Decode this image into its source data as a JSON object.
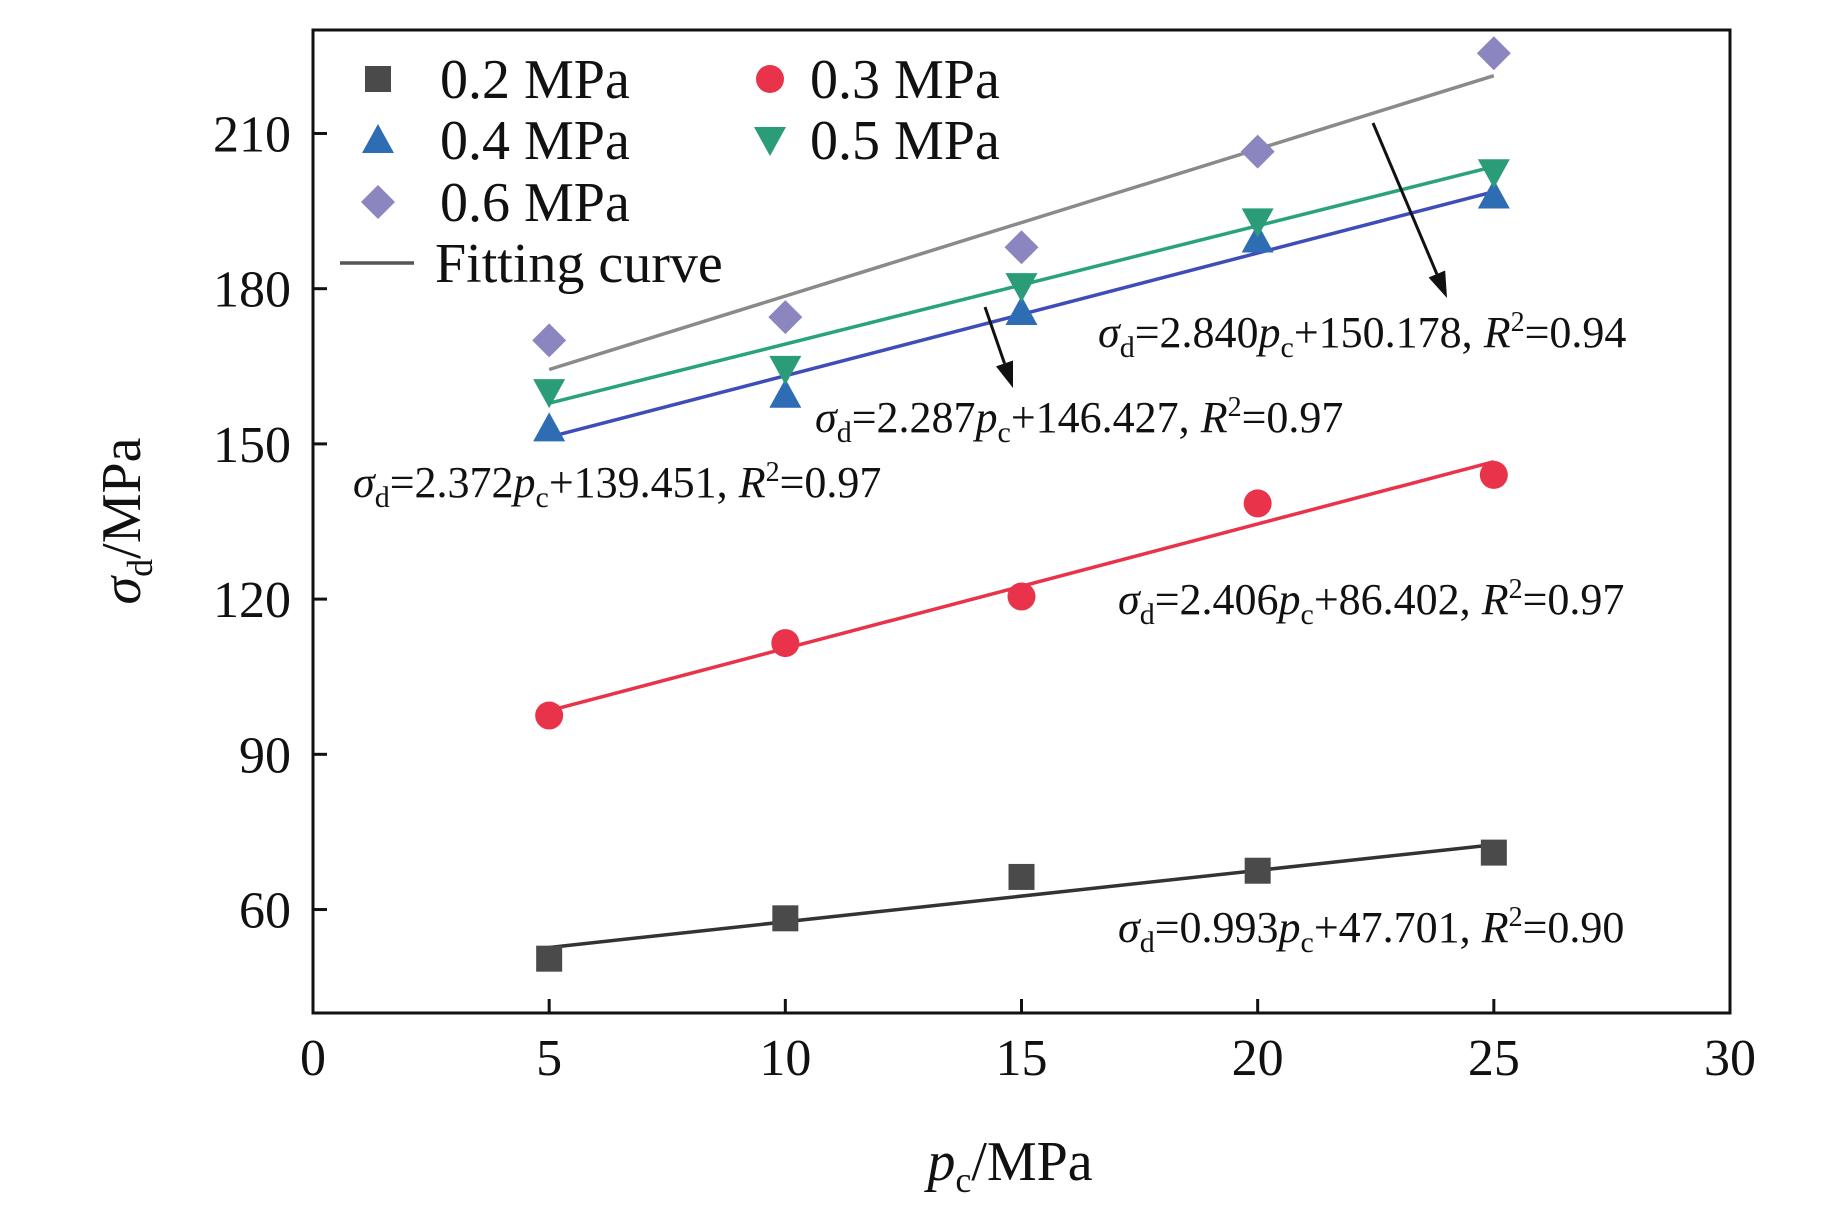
{
  "chart_data": {
    "type": "scatter",
    "title": "",
    "xlabel": {
      "symbol": "p",
      "subscript": "c",
      "unit": "/MPa"
    },
    "ylabel": {
      "symbol": "σ",
      "subscript": "d",
      "unit": "/MPa"
    },
    "xlim": [
      0,
      30
    ],
    "ylim": [
      40,
      230
    ],
    "xticks": [
      0,
      5,
      10,
      15,
      20,
      25,
      30
    ],
    "yticks": [
      60,
      90,
      120,
      150,
      180,
      210
    ],
    "grid": false,
    "legend_position": "top-left",
    "fit_label": "Fitting curve",
    "fit_color": "#555555",
    "series": [
      {
        "name": "0.2 MPa",
        "marker": "square",
        "color": "#4a4a4a",
        "line_color": "#333333",
        "x": [
          5,
          10,
          15,
          20,
          25
        ],
        "y": [
          50.5,
          58.3,
          66.3,
          67.5,
          71.0
        ],
        "fit": {
          "slope": 0.993,
          "intercept": 47.701
        },
        "equation": {
          "slope": "0.993",
          "intercept": "47.701",
          "r2": "0.90"
        }
      },
      {
        "name": "0.3 MPa",
        "marker": "circle",
        "color": "#e8334a",
        "line_color": "#e8334a",
        "x": [
          5,
          10,
          15,
          20,
          25
        ],
        "y": [
          97.5,
          111.5,
          120.5,
          138.5,
          144.0
        ],
        "fit": {
          "slope": 2.406,
          "intercept": 86.402
        },
        "equation": {
          "slope": "2.406",
          "intercept": "86.402",
          "r2": "0.97"
        }
      },
      {
        "name": "0.4 MPa",
        "marker": "triangle-up",
        "color": "#2e6db4",
        "line_color": "#3f4db8",
        "x": [
          5,
          10,
          15,
          20,
          25
        ],
        "y": [
          153.0,
          159.5,
          175.5,
          189.5,
          198.0
        ],
        "fit": {
          "slope": 2.372,
          "intercept": 139.451
        },
        "equation": {
          "slope": "2.372",
          "intercept": "139.451",
          "r2": "0.97"
        }
      },
      {
        "name": "0.5 MPa",
        "marker": "triangle-down",
        "color": "#2a9d78",
        "line_color": "#2aa37a",
        "x": [
          5,
          10,
          15,
          20,
          25
        ],
        "y": [
          160.0,
          164.5,
          180.5,
          193.0,
          202.5
        ],
        "fit": {
          "slope": 2.287,
          "intercept": 146.427
        },
        "equation": {
          "slope": "2.287",
          "intercept": "146.427",
          "r2": "0.97"
        }
      },
      {
        "name": "0.6 MPa",
        "marker": "diamond",
        "color": "#8c86c0",
        "line_color": "#8a8a8a",
        "x": [
          5,
          10,
          15,
          20,
          25
        ],
        "y": [
          170.0,
          174.5,
          188.0,
          206.5,
          225.5
        ],
        "fit": {
          "slope": 2.84,
          "intercept": 150.178
        },
        "equation": {
          "slope": "2.840",
          "intercept": "150.178",
          "r2": "0.94"
        }
      }
    ]
  }
}
